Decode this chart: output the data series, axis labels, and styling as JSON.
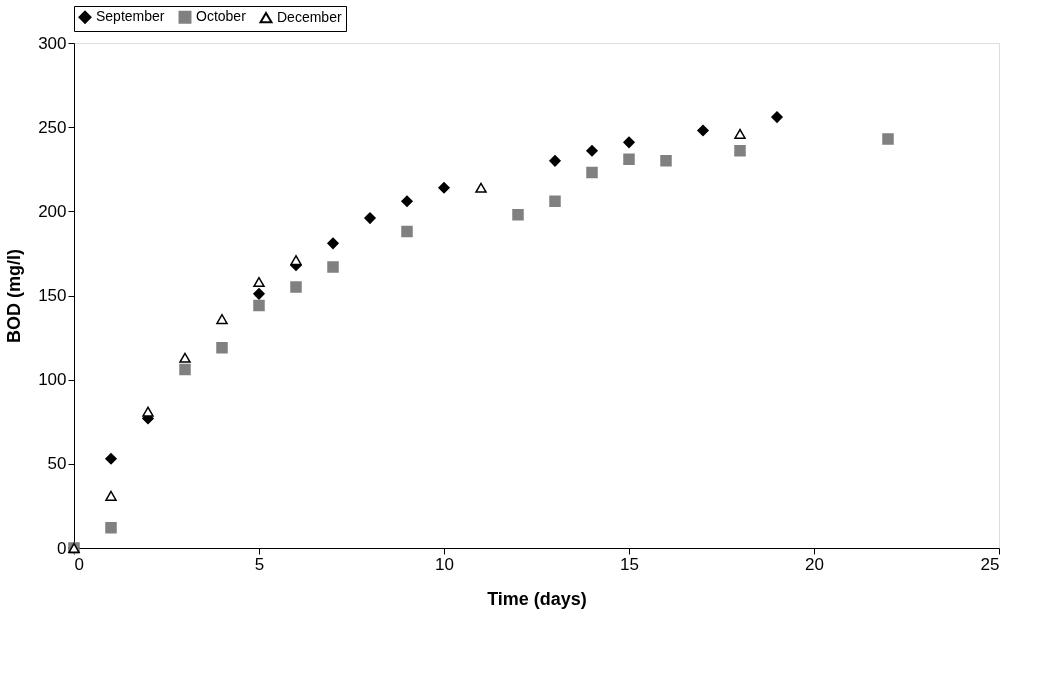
{
  "chart_data": {
    "type": "scatter",
    "xlabel": "Time (days)",
    "ylabel": "BOD (mg/l)",
    "xlim": [
      0,
      25
    ],
    "xticks": [
      0,
      5,
      10,
      15,
      20,
      25
    ],
    "ylim": [
      0,
      300
    ],
    "yticks": [
      0,
      50,
      100,
      150,
      200,
      250,
      300
    ],
    "grid": false,
    "legend": "top",
    "series": [
      {
        "name": "September",
        "color": "#000000",
        "marker": "diamond",
        "x": [
          0,
          1,
          2,
          5,
          6,
          7,
          8,
          9,
          10,
          13,
          14,
          15,
          17,
          19
        ],
        "values": [
          0,
          53,
          77,
          151,
          168,
          181,
          196,
          206,
          214,
          230,
          236,
          241,
          248,
          256
        ]
      },
      {
        "name": "October",
        "color": "#808080",
        "marker": "square",
        "x": [
          0,
          1,
          3,
          4,
          5,
          6,
          7,
          9,
          12,
          13,
          14,
          15,
          16,
          18,
          22
        ],
        "values": [
          0,
          12,
          106,
          119,
          144,
          155,
          167,
          188,
          198,
          206,
          223,
          231,
          230,
          236,
          243
        ]
      },
      {
        "name": "December",
        "color": "#ffffff",
        "marker": "triangle",
        "x": [
          0,
          1,
          2,
          3,
          4,
          5,
          6,
          11,
          18
        ],
        "values": [
          0,
          31,
          81,
          113,
          136,
          158,
          171,
          214,
          246
        ]
      }
    ]
  }
}
